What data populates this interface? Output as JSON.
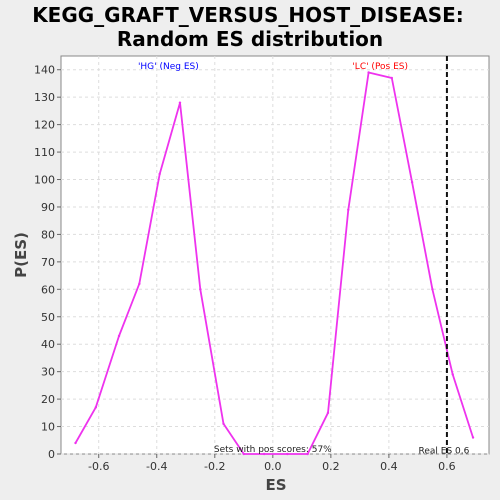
{
  "chart_data": {
    "type": "line",
    "title_line1": "KEGG_GRAFT_VERSUS_HOST_DISEASE:",
    "title_line2": "Random ES distribution",
    "xlabel": "ES",
    "ylabel": "P(ES)",
    "xlim": [
      -0.73,
      0.745
    ],
    "ylim": [
      0,
      145
    ],
    "xticks": [
      -0.6,
      -0.4,
      -0.2,
      0.0,
      0.2,
      0.4,
      0.6
    ],
    "xtick_labels": [
      "-0.6",
      "-0.4",
      "-0.2",
      "0.0",
      "0.2",
      "0.4",
      "0.6"
    ],
    "yticks": [
      0,
      10,
      20,
      30,
      40,
      50,
      60,
      70,
      80,
      90,
      100,
      110,
      120,
      130,
      140
    ],
    "grid": true,
    "series": [
      {
        "color": "#ee33ee",
        "x": [
          -0.68,
          -0.61,
          -0.53,
          -0.46,
          -0.39,
          -0.32,
          -0.25,
          -0.17,
          -0.1,
          -0.03,
          0.05,
          0.12,
          0.19,
          0.26,
          0.33,
          0.41,
          0.48,
          0.55,
          0.62,
          0.69
        ],
        "y": [
          4,
          17,
          43,
          62,
          102,
          128,
          60,
          11,
          0,
          0,
          0,
          0,
          15,
          89,
          139,
          137,
          99,
          60,
          29,
          6
        ]
      }
    ],
    "real_es": 0.6,
    "annotations": {
      "neg_label": "'HG' (Neg ES)",
      "neg_color": "#0000ff",
      "pos_label": "'LC' (Pos ES)",
      "pos_color": "#ff0000",
      "pos_scores": "Sets with pos scores: 57%",
      "real_es_label": "Real ES 0.6"
    }
  }
}
